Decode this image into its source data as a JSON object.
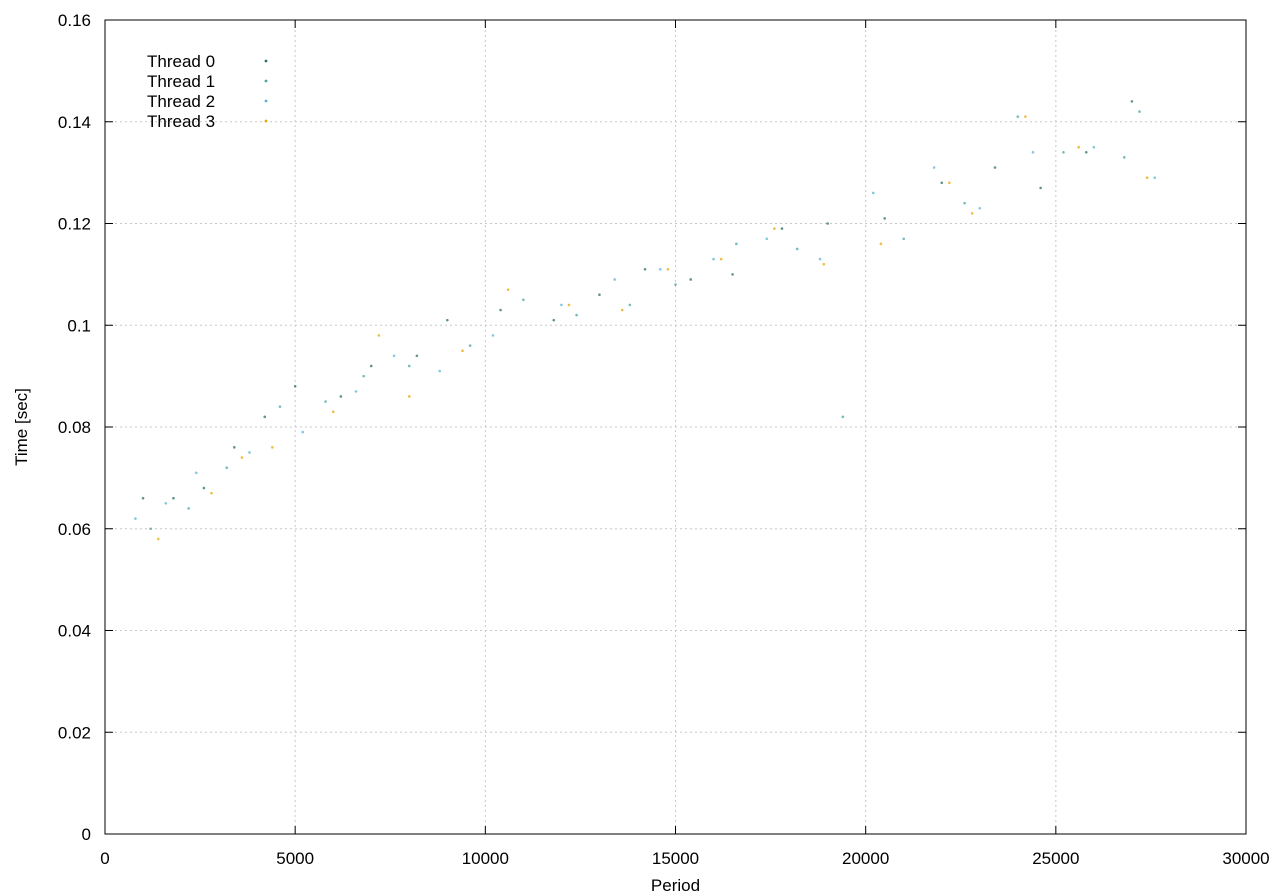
{
  "chart_data": {
    "type": "scatter",
    "title": "",
    "xlabel": "Period",
    "ylabel": "Time [sec]",
    "xlim": [
      0,
      30000
    ],
    "ylim": [
      0,
      0.16
    ],
    "x_ticks": [
      0,
      5000,
      10000,
      15000,
      20000,
      25000,
      30000
    ],
    "x_tick_labels": [
      "0",
      "5000",
      "10000",
      "15000",
      "20000",
      "25000",
      "30000"
    ],
    "y_ticks": [
      0,
      0.02,
      0.04,
      0.06,
      0.08,
      0.1,
      0.12,
      0.14,
      0.16
    ],
    "y_tick_labels": [
      "0",
      "0.02",
      "0.04",
      "0.06",
      "0.08",
      "0.1",
      "0.12",
      "0.14",
      "0.16"
    ],
    "grid": true,
    "legend_position": "top-left",
    "series": [
      {
        "name": "Thread 0",
        "color": "#2e6e6e",
        "points": [
          [
            1000,
            0.066
          ],
          [
            1800,
            0.066
          ],
          [
            2600,
            0.068
          ],
          [
            3400,
            0.076
          ],
          [
            4200,
            0.082
          ],
          [
            5000,
            0.088
          ],
          [
            6200,
            0.086
          ],
          [
            7000,
            0.092
          ],
          [
            8200,
            0.094
          ],
          [
            9000,
            0.101
          ],
          [
            10400,
            0.103
          ],
          [
            11800,
            0.101
          ],
          [
            13000,
            0.106
          ],
          [
            14200,
            0.111
          ],
          [
            15400,
            0.109
          ],
          [
            16500,
            0.11
          ],
          [
            17800,
            0.119
          ],
          [
            19000,
            0.12
          ],
          [
            20500,
            0.121
          ],
          [
            22000,
            0.128
          ],
          [
            23400,
            0.131
          ],
          [
            24600,
            0.127
          ],
          [
            25800,
            0.134
          ],
          [
            27000,
            0.144
          ]
        ]
      },
      {
        "name": "Thread 1",
        "color": "#4aa3a3",
        "points": [
          [
            1200,
            0.06
          ],
          [
            2200,
            0.064
          ],
          [
            3200,
            0.072
          ],
          [
            4600,
            0.084
          ],
          [
            5800,
            0.085
          ],
          [
            6800,
            0.09
          ],
          [
            8000,
            0.092
          ],
          [
            9600,
            0.096
          ],
          [
            11000,
            0.105
          ],
          [
            12400,
            0.102
          ],
          [
            13800,
            0.104
          ],
          [
            15000,
            0.108
          ],
          [
            16600,
            0.116
          ],
          [
            18200,
            0.115
          ],
          [
            19400,
            0.082
          ],
          [
            21000,
            0.117
          ],
          [
            22600,
            0.124
          ],
          [
            24000,
            0.141
          ],
          [
            25200,
            0.134
          ],
          [
            26800,
            0.133
          ],
          [
            27200,
            0.142
          ]
        ]
      },
      {
        "name": "Thread 2",
        "color": "#5ab4d6",
        "points": [
          [
            800,
            0.062
          ],
          [
            1600,
            0.065
          ],
          [
            2400,
            0.071
          ],
          [
            3800,
            0.075
          ],
          [
            5200,
            0.079
          ],
          [
            6600,
            0.087
          ],
          [
            7600,
            0.094
          ],
          [
            8800,
            0.091
          ],
          [
            10200,
            0.098
          ],
          [
            12000,
            0.104
          ],
          [
            13400,
            0.109
          ],
          [
            14600,
            0.111
          ],
          [
            16000,
            0.113
          ],
          [
            17400,
            0.117
          ],
          [
            18800,
            0.113
          ],
          [
            20200,
            0.126
          ],
          [
            21800,
            0.131
          ],
          [
            23000,
            0.123
          ],
          [
            24400,
            0.134
          ],
          [
            26000,
            0.135
          ],
          [
            27600,
            0.129
          ]
        ]
      },
      {
        "name": "Thread 3",
        "color": "#e6a800",
        "points": [
          [
            1400,
            0.058
          ],
          [
            2800,
            0.067
          ],
          [
            3600,
            0.074
          ],
          [
            4400,
            0.076
          ],
          [
            6000,
            0.083
          ],
          [
            7200,
            0.098
          ],
          [
            8000,
            0.086
          ],
          [
            9400,
            0.095
          ],
          [
            10600,
            0.107
          ],
          [
            12200,
            0.104
          ],
          [
            13600,
            0.103
          ],
          [
            14800,
            0.111
          ],
          [
            16200,
            0.113
          ],
          [
            17600,
            0.119
          ],
          [
            18900,
            0.112
          ],
          [
            20400,
            0.116
          ],
          [
            22200,
            0.128
          ],
          [
            22800,
            0.122
          ],
          [
            24200,
            0.141
          ],
          [
            25600,
            0.135
          ],
          [
            27400,
            0.129
          ]
        ]
      }
    ]
  }
}
